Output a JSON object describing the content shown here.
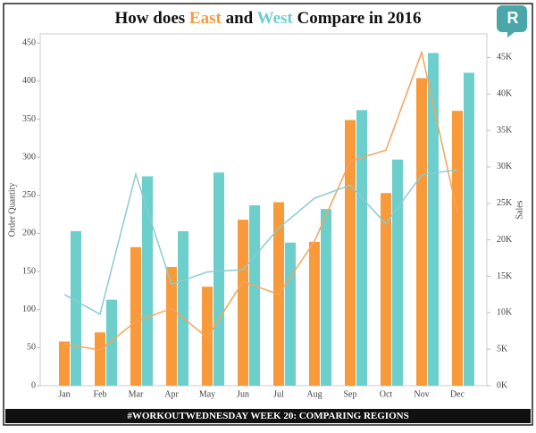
{
  "chart_data": {
    "type": "bar_line",
    "title": {
      "prefix": "How does",
      "middle": "and",
      "suffix": "Compare in 2016"
    },
    "logo": "R",
    "footer": "#WORKOUTWEDNESDAY WEEK 20: COMPARING REGIONS",
    "ylabel": "Order Quantity",
    "y2label": "Sales",
    "categories": [
      "Jan",
      "Feb",
      "Mar",
      "Apr",
      "May",
      "Jun",
      "Jul",
      "Aug",
      "Sep",
      "Oct",
      "Nov",
      "Dec"
    ],
    "series": [
      {
        "name": "East",
        "color": "#f89a3a",
        "line_color": "#f6a35a",
        "values": [
          58,
          70,
          182,
          156,
          130,
          218,
          241,
          189,
          349,
          253,
          404,
          361
        ],
        "sales": [
          5700,
          4900,
          8800,
          10600,
          6600,
          14300,
          12500,
          19800,
          30800,
          32300,
          45700,
          23700
        ]
      },
      {
        "name": "West",
        "color": "#6ccfcb",
        "line_color": "#8ccbd0",
        "values": [
          203,
          113,
          275,
          203,
          280,
          237,
          188,
          232,
          362,
          297,
          437,
          411
        ],
        "sales": [
          12500,
          9800,
          29000,
          13900,
          15600,
          15900,
          21600,
          25700,
          27500,
          22200,
          28900,
          29600
        ]
      }
    ],
    "ylim": [
      0,
      455
    ],
    "yticks": [
      0,
      50,
      100,
      150,
      200,
      250,
      300,
      350,
      400,
      450
    ],
    "y2lim": [
      0,
      47500
    ],
    "y2ticks": [
      {
        "value": 0,
        "label": "0K"
      },
      {
        "value": 5000,
        "label": "5K"
      },
      {
        "value": 10000,
        "label": "10K"
      },
      {
        "value": 15000,
        "label": "15K"
      },
      {
        "value": 20000,
        "label": "20K"
      },
      {
        "value": 25000,
        "label": "25K"
      },
      {
        "value": 30000,
        "label": "30K"
      },
      {
        "value": 35000,
        "label": "35K"
      },
      {
        "value": 40000,
        "label": "40K"
      },
      {
        "value": 45000,
        "label": "45K"
      }
    ]
  }
}
